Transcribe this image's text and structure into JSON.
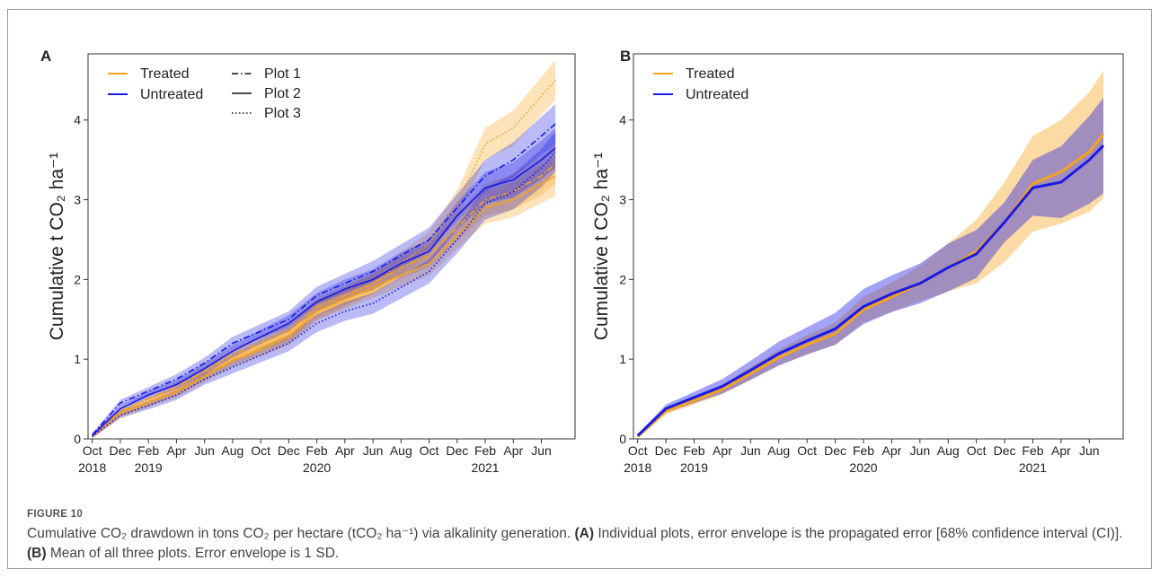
{
  "chart_data": [
    {
      "type": "line",
      "panel": "A",
      "y_label": "Cumulative t CO₂ ha⁻¹",
      "x": [
        "2018-10",
        "2018-12",
        "2019-02",
        "2019-04",
        "2019-06",
        "2019-08",
        "2019-10",
        "2019-12",
        "2020-02",
        "2020-04",
        "2020-06",
        "2020-08",
        "2020-10",
        "2020-12",
        "2021-02",
        "2021-04",
        "2021-06",
        "2021-07"
      ],
      "xlim": [
        "2018-09-22",
        "2021-08-13"
      ],
      "xticks": [
        {
          "value": "2018-10",
          "label": "Oct"
        },
        {
          "value": "2018-12",
          "label": "Dec"
        },
        {
          "value": "2019-02",
          "label": "Feb"
        },
        {
          "value": "2019-04",
          "label": "Apr"
        },
        {
          "value": "2019-06",
          "label": "Jun"
        },
        {
          "value": "2019-08",
          "label": "Aug"
        },
        {
          "value": "2019-10",
          "label": "Oct"
        },
        {
          "value": "2019-12",
          "label": "Dec"
        },
        {
          "value": "2020-02",
          "label": "Feb"
        },
        {
          "value": "2020-04",
          "label": "Apr"
        },
        {
          "value": "2020-06",
          "label": "Jun"
        },
        {
          "value": "2020-08",
          "label": "Aug"
        },
        {
          "value": "2020-10",
          "label": "Oct"
        },
        {
          "value": "2020-12",
          "label": "Dec"
        },
        {
          "value": "2021-02",
          "label": "Feb"
        },
        {
          "value": "2021-04",
          "label": "Apr"
        },
        {
          "value": "2021-06",
          "label": "Jun"
        }
      ],
      "year_labels": [
        {
          "value": "2018-10",
          "label": "2018"
        },
        {
          "value": "2019-02",
          "label": "2019"
        },
        {
          "value": "2020-02",
          "label": "2020"
        },
        {
          "value": "2021-02",
          "label": "2021"
        }
      ],
      "ylim": [
        0,
        4.83
      ],
      "yticks": [
        0,
        1,
        2,
        3,
        4
      ],
      "legend": "top-left",
      "groups": [
        {
          "name": "Treated",
          "color": "#f7a21b"
        },
        {
          "name": "Untreated",
          "color": "#1a1ae6"
        }
      ],
      "linestyles": [
        {
          "name": "Plot 1",
          "dash": "7,3,1.5,3"
        },
        {
          "name": "Plot 2",
          "dash": "none"
        },
        {
          "name": "Plot 3",
          "dash": "1.5,2.5"
        }
      ],
      "series": [
        {
          "group": 0,
          "linestyle": 0,
          "values": [
            0.03,
            0.35,
            0.5,
            0.65,
            0.85,
            1.05,
            1.2,
            1.35,
            1.65,
            1.8,
            1.95,
            2.15,
            2.3,
            2.65,
            3.0,
            3.1,
            3.3,
            3.45
          ],
          "errors": [
            0.02,
            0.04,
            0.05,
            0.06,
            0.07,
            0.08,
            0.09,
            0.1,
            0.11,
            0.12,
            0.13,
            0.14,
            0.15,
            0.17,
            0.2,
            0.22,
            0.24,
            0.25
          ]
        },
        {
          "group": 0,
          "linestyle": 1,
          "values": [
            0.03,
            0.32,
            0.45,
            0.58,
            0.78,
            0.98,
            1.12,
            1.28,
            1.6,
            1.75,
            1.9,
            2.05,
            2.2,
            2.55,
            2.9,
            3.0,
            3.2,
            3.3
          ],
          "errors": [
            0.02,
            0.04,
            0.05,
            0.06,
            0.07,
            0.08,
            0.09,
            0.1,
            0.11,
            0.12,
            0.13,
            0.14,
            0.15,
            0.17,
            0.2,
            0.22,
            0.24,
            0.25
          ]
        },
        {
          "group": 0,
          "linestyle": 2,
          "values": [
            0.03,
            0.3,
            0.45,
            0.6,
            0.8,
            1.0,
            1.15,
            1.3,
            1.6,
            1.78,
            1.95,
            2.2,
            2.45,
            2.95,
            3.7,
            3.9,
            4.3,
            4.5
          ],
          "errors": [
            0.02,
            0.04,
            0.05,
            0.06,
            0.07,
            0.08,
            0.09,
            0.1,
            0.11,
            0.12,
            0.13,
            0.14,
            0.15,
            0.17,
            0.2,
            0.22,
            0.24,
            0.25
          ]
        },
        {
          "group": 1,
          "linestyle": 0,
          "values": [
            0.05,
            0.45,
            0.6,
            0.75,
            0.95,
            1.2,
            1.35,
            1.5,
            1.8,
            1.95,
            2.1,
            2.3,
            2.5,
            2.9,
            3.3,
            3.5,
            3.8,
            3.95
          ],
          "errors": [
            0.02,
            0.04,
            0.05,
            0.06,
            0.07,
            0.08,
            0.09,
            0.1,
            0.11,
            0.12,
            0.13,
            0.14,
            0.15,
            0.17,
            0.2,
            0.22,
            0.24,
            0.25
          ]
        },
        {
          "group": 1,
          "linestyle": 1,
          "values": [
            0.04,
            0.38,
            0.55,
            0.68,
            0.88,
            1.1,
            1.28,
            1.45,
            1.72,
            1.88,
            2.0,
            2.2,
            2.35,
            2.8,
            3.15,
            3.25,
            3.5,
            3.65
          ],
          "errors": [
            0.02,
            0.04,
            0.05,
            0.06,
            0.07,
            0.08,
            0.09,
            0.1,
            0.11,
            0.12,
            0.13,
            0.14,
            0.15,
            0.17,
            0.2,
            0.22,
            0.24,
            0.25
          ]
        },
        {
          "group": 1,
          "linestyle": 2,
          "values": [
            0.03,
            0.3,
            0.42,
            0.55,
            0.75,
            0.9,
            1.05,
            1.2,
            1.45,
            1.6,
            1.7,
            1.9,
            2.1,
            2.5,
            2.95,
            3.1,
            3.4,
            3.6
          ],
          "errors": [
            0.02,
            0.04,
            0.05,
            0.06,
            0.07,
            0.08,
            0.09,
            0.1,
            0.11,
            0.12,
            0.13,
            0.14,
            0.15,
            0.17,
            0.2,
            0.22,
            0.24,
            0.25
          ]
        }
      ]
    },
    {
      "type": "line",
      "panel": "B",
      "y_label": "Cumulative t CO₂ ha⁻¹",
      "x": [
        "2018-10",
        "2018-12",
        "2019-02",
        "2019-04",
        "2019-06",
        "2019-08",
        "2019-10",
        "2019-12",
        "2020-02",
        "2020-04",
        "2020-06",
        "2020-08",
        "2020-10",
        "2020-12",
        "2021-02",
        "2021-04",
        "2021-06",
        "2021-07"
      ],
      "xlim": [
        "2018-09-22",
        "2021-08-13"
      ],
      "xticks": [
        {
          "value": "2018-10",
          "label": "Oct"
        },
        {
          "value": "2018-12",
          "label": "Dec"
        },
        {
          "value": "2019-02",
          "label": "Feb"
        },
        {
          "value": "2019-04",
          "label": "Apr"
        },
        {
          "value": "2019-06",
          "label": "Jun"
        },
        {
          "value": "2019-08",
          "label": "Aug"
        },
        {
          "value": "2019-10",
          "label": "Oct"
        },
        {
          "value": "2019-12",
          "label": "Dec"
        },
        {
          "value": "2020-02",
          "label": "Feb"
        },
        {
          "value": "2020-04",
          "label": "Apr"
        },
        {
          "value": "2020-06",
          "label": "Jun"
        },
        {
          "value": "2020-08",
          "label": "Aug"
        },
        {
          "value": "2020-10",
          "label": "Oct"
        },
        {
          "value": "2020-12",
          "label": "Dec"
        },
        {
          "value": "2021-02",
          "label": "Feb"
        },
        {
          "value": "2021-04",
          "label": "Apr"
        },
        {
          "value": "2021-06",
          "label": "Jun"
        }
      ],
      "year_labels": [
        {
          "value": "2018-10",
          "label": "2018"
        },
        {
          "value": "2019-02",
          "label": "2019"
        },
        {
          "value": "2020-02",
          "label": "2020"
        },
        {
          "value": "2021-02",
          "label": "2021"
        }
      ],
      "ylim": [
        0,
        4.83
      ],
      "yticks": [
        0,
        1,
        2,
        3,
        4
      ],
      "legend": "top-left",
      "series": [
        {
          "name": "Treated",
          "color": "#f7a21b",
          "values": [
            0.03,
            0.35,
            0.48,
            0.62,
            0.82,
            1.02,
            1.18,
            1.32,
            1.62,
            1.78,
            1.95,
            2.15,
            2.35,
            2.72,
            3.2,
            3.35,
            3.6,
            3.82
          ],
          "errors": [
            0.02,
            0.04,
            0.05,
            0.06,
            0.08,
            0.1,
            0.12,
            0.14,
            0.16,
            0.18,
            0.22,
            0.3,
            0.4,
            0.5,
            0.6,
            0.65,
            0.75,
            0.8
          ]
        },
        {
          "name": "Untreated",
          "color": "#1a1ae6",
          "values": [
            0.04,
            0.38,
            0.52,
            0.66,
            0.86,
            1.07,
            1.23,
            1.38,
            1.66,
            1.82,
            1.95,
            2.15,
            2.32,
            2.72,
            3.15,
            3.22,
            3.5,
            3.68
          ],
          "errors": [
            0.02,
            0.05,
            0.07,
            0.09,
            0.12,
            0.15,
            0.17,
            0.2,
            0.22,
            0.23,
            0.25,
            0.3,
            0.3,
            0.25,
            0.35,
            0.45,
            0.55,
            0.6
          ]
        }
      ]
    }
  ],
  "caption": {
    "figure": "FIGURE 10",
    "intro": "Cumulative CO₂ drawdown in tons CO₂ per hectare (tCO₂ ha⁻¹) via alkalinity generation.",
    "parts": [
      {
        "label": "(A)",
        "text": "Individual plots, error envelope is the propagated error [68% confidence interval (CI)]."
      },
      {
        "label": "(B)",
        "text": "Mean of all three plots. Error envelope is 1 SD."
      }
    ]
  }
}
